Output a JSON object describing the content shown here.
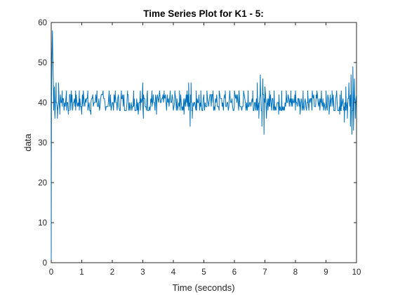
{
  "chart_data": {
    "type": "line",
    "title": "Time Series Plot for K1 - 5:",
    "xlabel": "Time (seconds)",
    "ylabel": "data",
    "xlim": [
      0,
      10
    ],
    "ylim": [
      0,
      60
    ],
    "xticks": [
      0,
      1,
      2,
      3,
      4,
      5,
      6,
      7,
      8,
      9,
      10
    ],
    "yticks": [
      0,
      10,
      20,
      30,
      40,
      50,
      60
    ],
    "grid": false,
    "legend": "none",
    "line_color": "#0072BD",
    "baseline": 40,
    "base_levels": [
      38,
      39,
      40,
      41,
      42
    ],
    "x_step": 0.02,
    "series": [
      {
        "x": [
          0,
          0.005,
          0.01,
          0.02,
          0.03,
          0.04,
          0.05,
          0.06,
          0.07,
          0.08,
          0.09,
          0.1,
          0.12,
          0.14
        ],
        "values": [
          0,
          26,
          40,
          50,
          54,
          58,
          52,
          48,
          45,
          38,
          42,
          44,
          36,
          40
        ]
      }
    ],
    "spikes": [
      {
        "x": 0.16,
        "y": 45
      },
      {
        "x": 0.2,
        "y": 36
      },
      {
        "x": 0.24,
        "y": 45
      },
      {
        "x": 0.28,
        "y": 37
      },
      {
        "x": 0.36,
        "y": 43
      },
      {
        "x": 0.42,
        "y": 38
      },
      {
        "x": 0.5,
        "y": 43
      },
      {
        "x": 0.56,
        "y": 37
      },
      {
        "x": 0.66,
        "y": 43
      },
      {
        "x": 0.8,
        "y": 43
      },
      {
        "x": 0.92,
        "y": 43
      },
      {
        "x": 1.0,
        "y": 37
      },
      {
        "x": 1.05,
        "y": 43
      },
      {
        "x": 1.2,
        "y": 43
      },
      {
        "x": 1.3,
        "y": 37
      },
      {
        "x": 1.5,
        "y": 43
      },
      {
        "x": 1.7,
        "y": 43
      },
      {
        "x": 1.9,
        "y": 43
      },
      {
        "x": 2.1,
        "y": 43
      },
      {
        "x": 2.3,
        "y": 43
      },
      {
        "x": 2.5,
        "y": 43
      },
      {
        "x": 2.7,
        "y": 43
      },
      {
        "x": 2.85,
        "y": 37
      },
      {
        "x": 2.92,
        "y": 43
      },
      {
        "x": 3.0,
        "y": 45
      },
      {
        "x": 3.02,
        "y": 36
      },
      {
        "x": 3.15,
        "y": 43
      },
      {
        "x": 3.3,
        "y": 43
      },
      {
        "x": 3.45,
        "y": 37
      },
      {
        "x": 3.55,
        "y": 43
      },
      {
        "x": 3.7,
        "y": 43
      },
      {
        "x": 3.9,
        "y": 43
      },
      {
        "x": 4.05,
        "y": 43
      },
      {
        "x": 4.2,
        "y": 43
      },
      {
        "x": 4.35,
        "y": 37
      },
      {
        "x": 4.45,
        "y": 43
      },
      {
        "x": 4.5,
        "y": 45
      },
      {
        "x": 4.55,
        "y": 34
      },
      {
        "x": 4.58,
        "y": 45
      },
      {
        "x": 4.62,
        "y": 36
      },
      {
        "x": 4.75,
        "y": 43
      },
      {
        "x": 4.9,
        "y": 43
      },
      {
        "x": 5.1,
        "y": 43
      },
      {
        "x": 5.3,
        "y": 43
      },
      {
        "x": 5.5,
        "y": 43
      },
      {
        "x": 5.7,
        "y": 43
      },
      {
        "x": 5.85,
        "y": 43
      },
      {
        "x": 6.0,
        "y": 43
      },
      {
        "x": 6.15,
        "y": 43
      },
      {
        "x": 6.3,
        "y": 43
      },
      {
        "x": 6.45,
        "y": 43
      },
      {
        "x": 6.6,
        "y": 43
      },
      {
        "x": 6.75,
        "y": 45
      },
      {
        "x": 6.8,
        "y": 36
      },
      {
        "x": 6.85,
        "y": 47
      },
      {
        "x": 6.9,
        "y": 34
      },
      {
        "x": 6.93,
        "y": 46
      },
      {
        "x": 6.97,
        "y": 32
      },
      {
        "x": 7.0,
        "y": 44
      },
      {
        "x": 7.05,
        "y": 36
      },
      {
        "x": 7.15,
        "y": 43
      },
      {
        "x": 7.3,
        "y": 43
      },
      {
        "x": 7.45,
        "y": 37
      },
      {
        "x": 7.55,
        "y": 43
      },
      {
        "x": 7.7,
        "y": 43
      },
      {
        "x": 7.85,
        "y": 43
      },
      {
        "x": 8.0,
        "y": 43
      },
      {
        "x": 8.15,
        "y": 37
      },
      {
        "x": 8.25,
        "y": 43
      },
      {
        "x": 8.4,
        "y": 43
      },
      {
        "x": 8.55,
        "y": 43
      },
      {
        "x": 8.7,
        "y": 43
      },
      {
        "x": 8.85,
        "y": 43
      },
      {
        "x": 9.0,
        "y": 43
      },
      {
        "x": 9.1,
        "y": 37
      },
      {
        "x": 9.2,
        "y": 43
      },
      {
        "x": 9.35,
        "y": 43
      },
      {
        "x": 9.45,
        "y": 37
      },
      {
        "x": 9.5,
        "y": 43
      },
      {
        "x": 9.6,
        "y": 35
      },
      {
        "x": 9.65,
        "y": 44
      },
      {
        "x": 9.7,
        "y": 36
      },
      {
        "x": 9.75,
        "y": 45
      },
      {
        "x": 9.8,
        "y": 34
      },
      {
        "x": 9.82,
        "y": 47
      },
      {
        "x": 9.85,
        "y": 32
      },
      {
        "x": 9.88,
        "y": 49
      },
      {
        "x": 9.9,
        "y": 33
      },
      {
        "x": 9.93,
        "y": 46
      },
      {
        "x": 9.96,
        "y": 36
      },
      {
        "x": 10.0,
        "y": 45
      }
    ]
  }
}
